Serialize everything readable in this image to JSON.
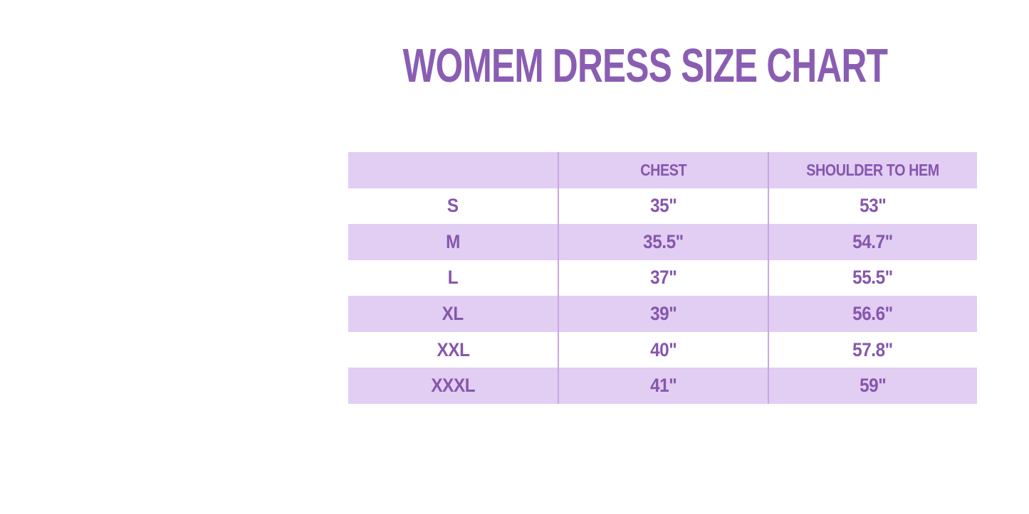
{
  "title": "WOMEM DRESS SIZE CHART",
  "colors": {
    "background": "#ffffff",
    "title_purple": "#8a5db3",
    "text_purple": "#8656ad",
    "row_lavender": "#e1cef2",
    "divider": "#c9a6e3"
  },
  "chart_data": {
    "type": "table",
    "title": "WOMEM DRESS SIZE CHART",
    "columns": [
      "",
      "CHEST",
      "SHOULDER TO HEM"
    ],
    "rows": [
      {
        "size": "S",
        "chest": "35\"",
        "shoulder_to_hem": "53\""
      },
      {
        "size": "M",
        "chest": "35.5\"",
        "shoulder_to_hem": "54.7\""
      },
      {
        "size": "L",
        "chest": "37\"",
        "shoulder_to_hem": "55.5\""
      },
      {
        "size": "XL",
        "chest": "39\"",
        "shoulder_to_hem": "56.6\""
      },
      {
        "size": "XXL",
        "chest": "40\"",
        "shoulder_to_hem": "57.8\""
      },
      {
        "size": "XXXL",
        "chest": "41\"",
        "shoulder_to_hem": "59\""
      }
    ],
    "layout": {
      "striped_rows": "header, M, XL, XXXL are lavender; S, L, XXL are white",
      "column_dividers": true,
      "outer_border": false
    }
  }
}
